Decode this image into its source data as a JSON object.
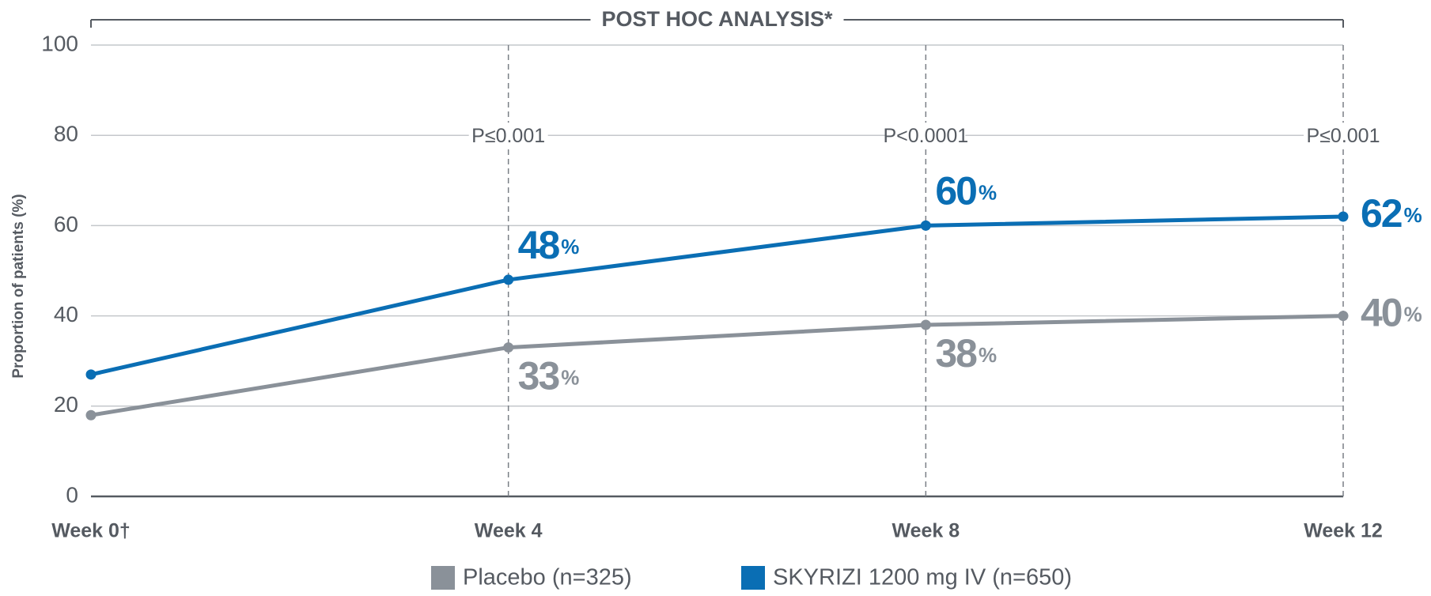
{
  "chart_data": {
    "type": "line",
    "header": "POST HOC ANALYSIS*",
    "y_label": "Proportion of patients (%)",
    "categories": [
      "Week 0†",
      "Week 4",
      "Week 8",
      "Week 12"
    ],
    "annotations": [
      null,
      "P≤0.001",
      "P<0.0001",
      "P≤0.001"
    ],
    "series": [
      {
        "name": "Placebo (n=325)",
        "color": "#8a9199",
        "values": [
          18,
          33,
          38,
          40
        ],
        "value_labels": [
          null,
          "33%",
          "38%",
          "40%"
        ]
      },
      {
        "name": "SKYRIZI 1200 mg IV (n=650)",
        "color": "#0a6eb4",
        "values": [
          27,
          48,
          60,
          62
        ],
        "value_labels": [
          null,
          "48%",
          "60%",
          "62%"
        ]
      }
    ],
    "ylim": [
      0,
      100
    ],
    "yticks": [
      0,
      20,
      40,
      60,
      80,
      100
    ],
    "grid": true
  }
}
